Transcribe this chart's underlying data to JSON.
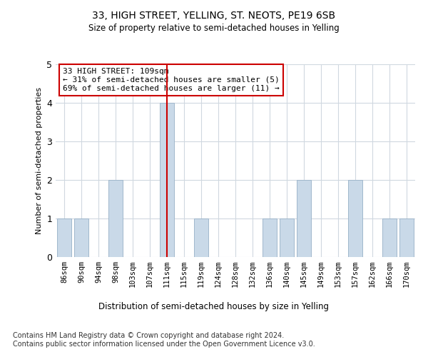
{
  "title_line1": "33, HIGH STREET, YELLING, ST. NEOTS, PE19 6SB",
  "title_line2": "Size of property relative to semi-detached houses in Yelling",
  "xlabel": "Distribution of semi-detached houses by size in Yelling",
  "ylabel": "Number of semi-detached properties",
  "categories": [
    "86sqm",
    "90sqm",
    "94sqm",
    "98sqm",
    "103sqm",
    "107sqm",
    "111sqm",
    "115sqm",
    "119sqm",
    "124sqm",
    "128sqm",
    "132sqm",
    "136sqm",
    "140sqm",
    "145sqm",
    "149sqm",
    "153sqm",
    "157sqm",
    "162sqm",
    "166sqm",
    "170sqm"
  ],
  "values": [
    1,
    1,
    0,
    2,
    0,
    0,
    4,
    0,
    1,
    0,
    0,
    0,
    1,
    1,
    2,
    0,
    0,
    2,
    0,
    1,
    1
  ],
  "highlight_index": 6,
  "bar_color": "#c9d9e8",
  "bar_edgecolor": "#a0b8cc",
  "highlight_line_color": "#cc0000",
  "annotation_text": "33 HIGH STREET: 109sqm\n← 31% of semi-detached houses are smaller (5)\n69% of semi-detached houses are larger (11) →",
  "annotation_box_edgecolor": "#cc0000",
  "footer_text": "Contains HM Land Registry data © Crown copyright and database right 2024.\nContains public sector information licensed under the Open Government Licence v3.0.",
  "ylim": [
    0,
    5
  ],
  "yticks": [
    0,
    1,
    2,
    3,
    4,
    5
  ],
  "bg_color": "#ffffff",
  "grid_color": "#d0d8e0"
}
